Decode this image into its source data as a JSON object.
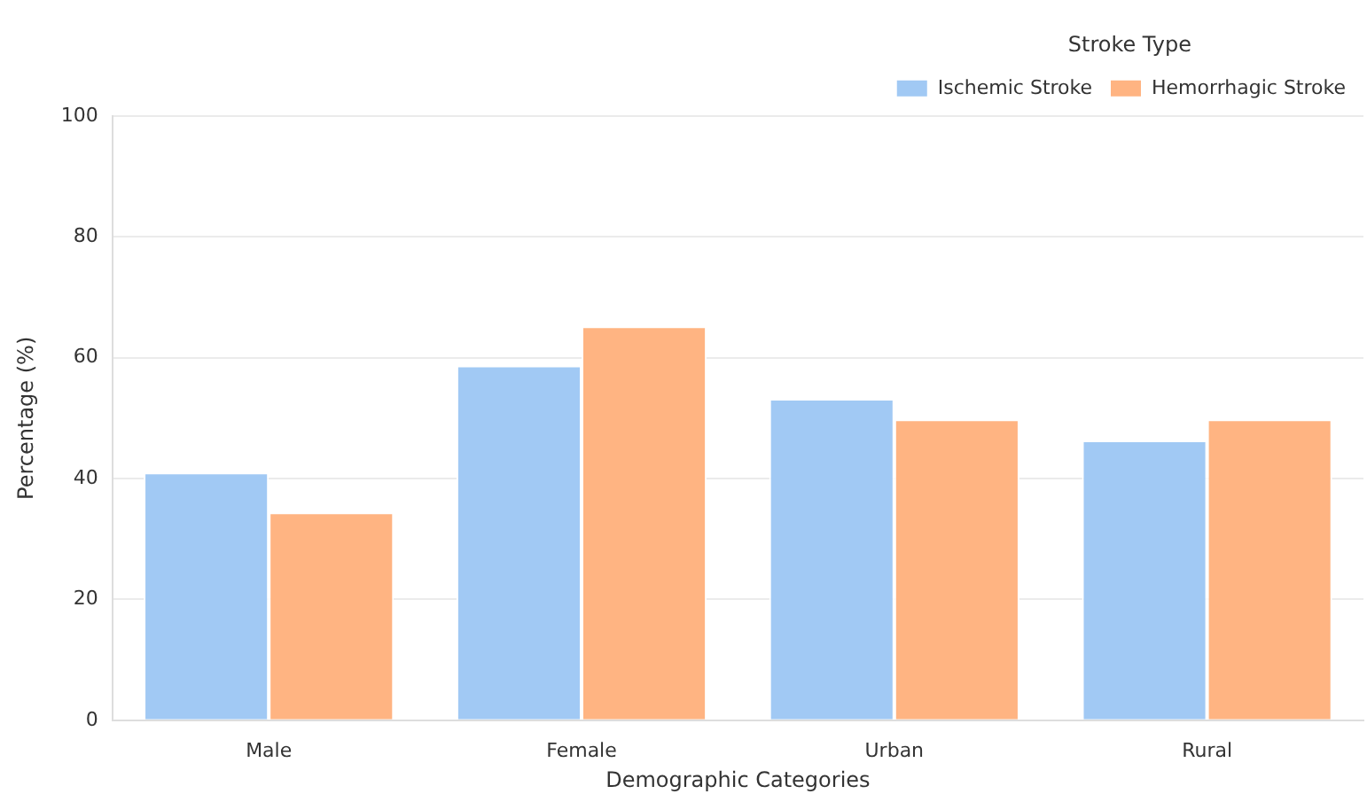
{
  "chart_data": {
    "type": "bar",
    "xlabel": "Demographic Categories",
    "ylabel": "Percentage (%)",
    "legend_title": "Stroke Type",
    "categories": [
      "Male",
      "Female",
      "Urban",
      "Rural"
    ],
    "series": [
      {
        "name": "Ischemic Stroke",
        "color": "#a1c9f4",
        "values": [
          41,
          58.7,
          53.2,
          46.3
        ]
      },
      {
        "name": "Hemorrhagic Stroke",
        "color": "#ffb482",
        "values": [
          34.4,
          65.2,
          49.8,
          49.8
        ]
      }
    ],
    "ylim": [
      0,
      100
    ],
    "yticks": [
      0,
      20,
      40,
      60,
      80,
      100
    ],
    "grid": "y",
    "legend": "top right"
  }
}
